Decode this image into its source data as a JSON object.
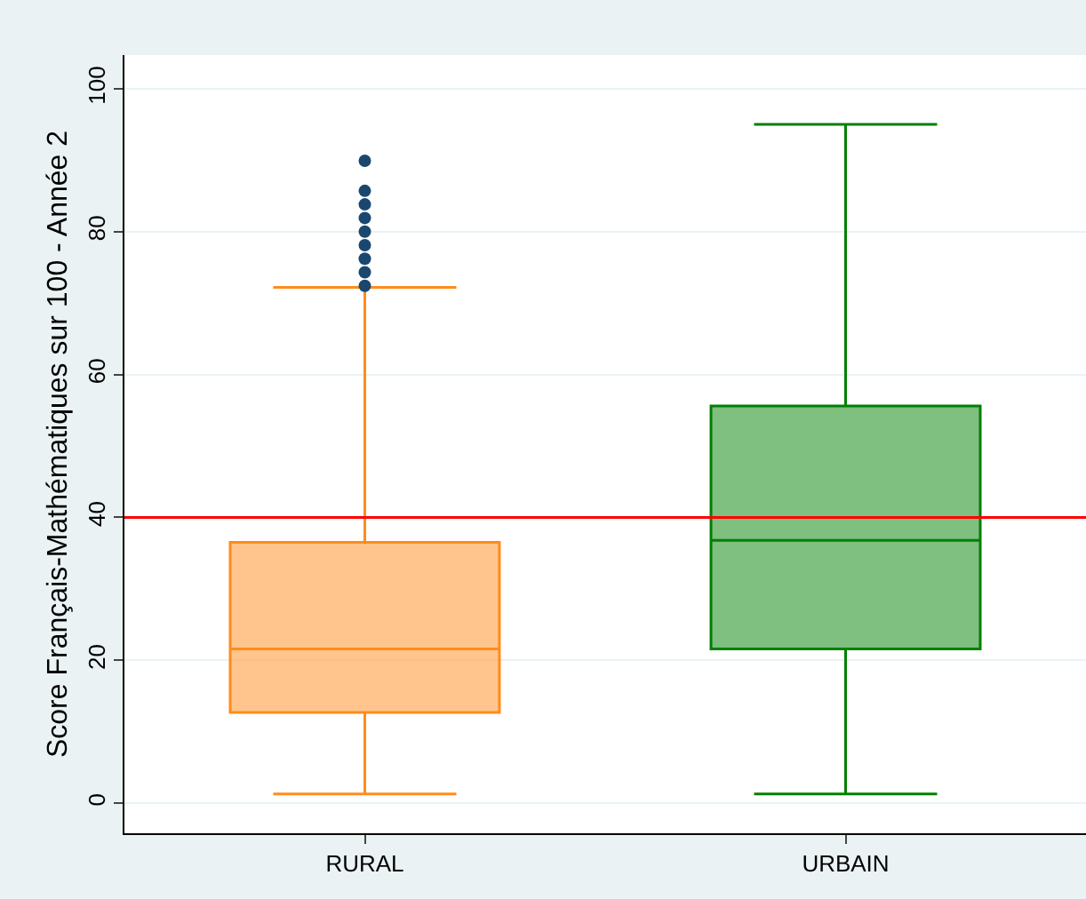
{
  "chart_data": {
    "type": "box",
    "ylabel": "Score Français-Mathématiques sur 100 - Année 2",
    "categories": [
      "RURAL",
      "URBAIN"
    ],
    "series": [
      {
        "color": "#ff8c1a",
        "boxes": [
          {
            "low": 1.3,
            "q1": 12.7,
            "median": 21.6,
            "q3": 36.5,
            "high": 72.2
          },
          null
        ]
      },
      {
        "color": "#008000",
        "boxes": [
          null,
          {
            "low": 1.3,
            "q1": 21.6,
            "median": 36.8,
            "q3": 55.6,
            "high": 95.0
          }
        ]
      },
      {
        "type": "scatter",
        "color": "#1a476f",
        "x": [
          "RURAL",
          "RURAL",
          "RURAL",
          "RURAL",
          "RURAL",
          "RURAL",
          "RURAL",
          "RURAL",
          "RURAL"
        ],
        "values": [
          72.4,
          74.3,
          76.2,
          78.1,
          80,
          81.9,
          83.8,
          85.7,
          89.9
        ]
      }
    ],
    "marker": "circle",
    "ylim": [
      -4.2,
      104.7
    ],
    "yticks": [
      0,
      20,
      40,
      60,
      80,
      100
    ],
    "grid": "y",
    "ref_lines": [
      {
        "axis": "y",
        "value": 40,
        "color": "#ff0000"
      }
    ]
  }
}
